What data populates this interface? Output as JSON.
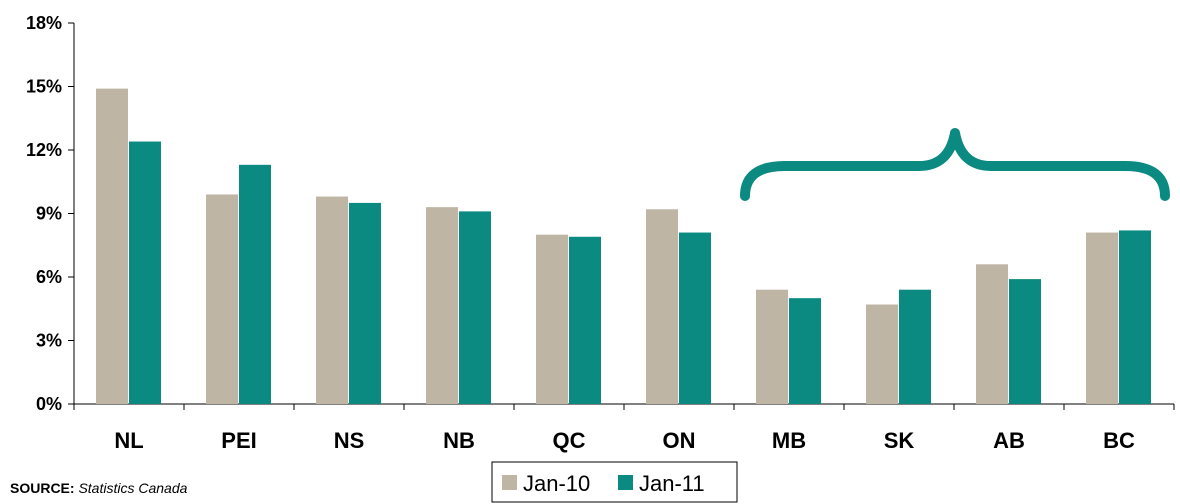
{
  "chart_data": {
    "type": "bar",
    "categories": [
      "NL",
      "PEI",
      "NS",
      "NB",
      "QC",
      "ON",
      "MB",
      "SK",
      "AB",
      "BC"
    ],
    "series": [
      {
        "name": "Jan-10",
        "color": "#bfb5a5",
        "values": [
          14.9,
          9.9,
          9.8,
          9.3,
          8.0,
          9.2,
          5.4,
          4.7,
          6.6,
          8.1
        ]
      },
      {
        "name": "Jan-11",
        "color": "#0a8a80",
        "values": [
          12.4,
          11.3,
          9.5,
          9.1,
          7.9,
          8.1,
          5.0,
          5.4,
          5.9,
          8.2
        ]
      }
    ],
    "ylim": [
      0,
      18
    ],
    "yticks": [
      0,
      3,
      6,
      9,
      12,
      15,
      18
    ],
    "ytick_format": "%",
    "grid": false,
    "legend_position": "bottom-center",
    "annotation": {
      "type": "brace",
      "color": "#0a8a80",
      "spans_categories": [
        "MB",
        "BC"
      ]
    }
  },
  "source": {
    "label": "SOURCE:",
    "value": "Statistics Canada"
  }
}
